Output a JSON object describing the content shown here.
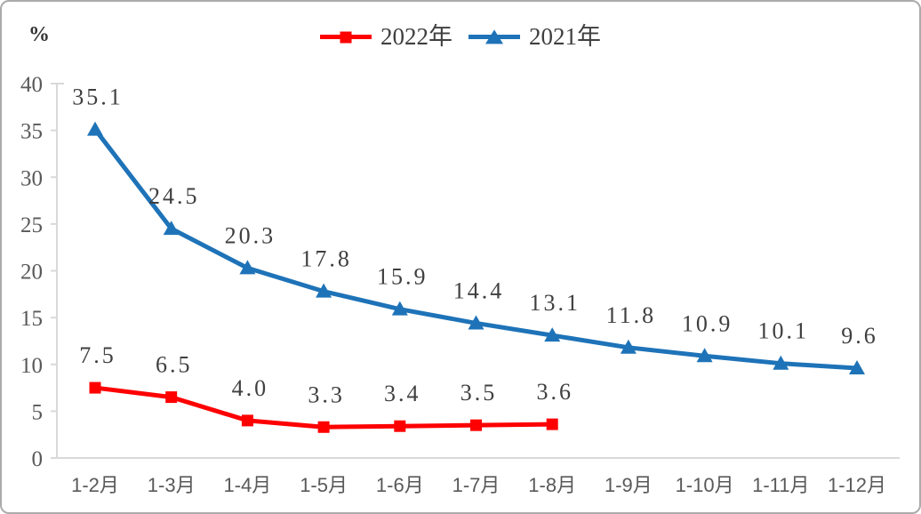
{
  "chart_data": {
    "type": "line",
    "title": "",
    "ylabel": "%",
    "xlabel": "",
    "categories": [
      "1-2月",
      "1-3月",
      "1-4月",
      "1-5月",
      "1-6月",
      "1-7月",
      "1-8月",
      "1-9月",
      "1-10月",
      "1-11月",
      "1-12月"
    ],
    "series": [
      {
        "name": "2022年",
        "color": "#fe0000",
        "marker": "square",
        "values": [
          7.5,
          6.5,
          4.0,
          3.3,
          3.4,
          3.5,
          3.6
        ]
      },
      {
        "name": "2021年",
        "color": "#1e73b8",
        "marker": "triangle",
        "values": [
          35.1,
          24.5,
          20.3,
          17.8,
          15.9,
          14.4,
          13.1,
          11.8,
          10.9,
          10.1,
          9.6
        ]
      }
    ],
    "ylim": [
      0,
      40
    ],
    "yticks": [
      0,
      5,
      10,
      15,
      20,
      25,
      30,
      35,
      40
    ],
    "legend_position": "top-center",
    "grid": false,
    "data_labels": true,
    "axis_color": "#d9d9d9",
    "tick_label_color": "#595959",
    "data_label_color": "#3f3f3f"
  }
}
